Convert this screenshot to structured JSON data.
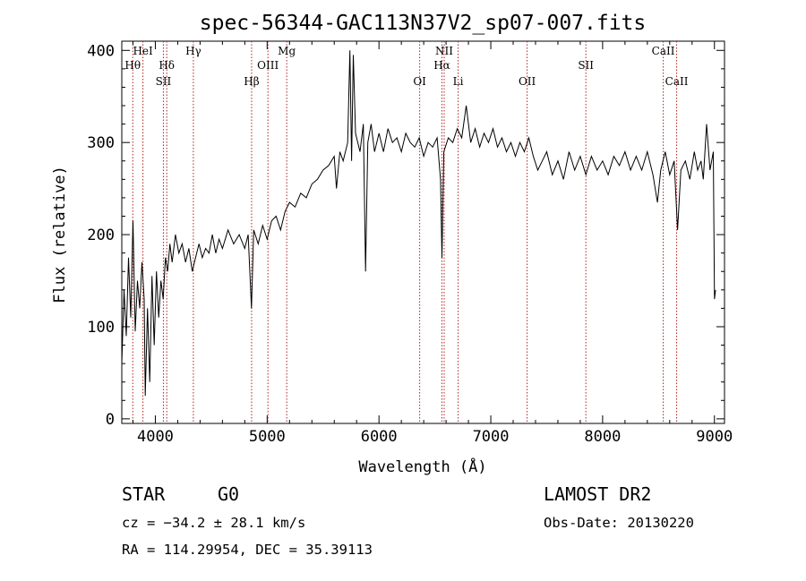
{
  "chart_data": {
    "type": "line",
    "title": "spec-56344-GAC113N37V2_sp07-007.fits",
    "xlabel": "Wavelength (Å)",
    "ylabel": "Flux (relative)",
    "xlim": [
      3700,
      9090
    ],
    "ylim": [
      -5,
      410
    ],
    "x_ticks": [
      4000,
      5000,
      6000,
      7000,
      8000,
      9000
    ],
    "y_ticks": [
      0,
      100,
      200,
      300,
      400
    ],
    "grid": false,
    "series": [
      {
        "color": "#000000",
        "points": [
          [
            3700,
            60
          ],
          [
            3720,
            140
          ],
          [
            3740,
            90
          ],
          [
            3760,
            175
          ],
          [
            3780,
            110
          ],
          [
            3800,
            215
          ],
          [
            3820,
            95
          ],
          [
            3840,
            150
          ],
          [
            3860,
            120
          ],
          [
            3880,
            170
          ],
          [
            3900,
            130
          ],
          [
            3910,
            25
          ],
          [
            3930,
            120
          ],
          [
            3950,
            40
          ],
          [
            3970,
            155
          ],
          [
            3990,
            80
          ],
          [
            4010,
            160
          ],
          [
            4030,
            110
          ],
          [
            4050,
            150
          ],
          [
            4070,
            130
          ],
          [
            4090,
            175
          ],
          [
            4110,
            160
          ],
          [
            4130,
            190
          ],
          [
            4150,
            170
          ],
          [
            4180,
            200
          ],
          [
            4210,
            180
          ],
          [
            4240,
            190
          ],
          [
            4270,
            170
          ],
          [
            4300,
            185
          ],
          [
            4330,
            160
          ],
          [
            4360,
            175
          ],
          [
            4390,
            190
          ],
          [
            4420,
            175
          ],
          [
            4450,
            185
          ],
          [
            4480,
            180
          ],
          [
            4510,
            200
          ],
          [
            4540,
            180
          ],
          [
            4570,
            195
          ],
          [
            4600,
            185
          ],
          [
            4650,
            205
          ],
          [
            4700,
            190
          ],
          [
            4750,
            200
          ],
          [
            4800,
            185
          ],
          [
            4830,
            200
          ],
          [
            4860,
            120
          ],
          [
            4880,
            205
          ],
          [
            4920,
            190
          ],
          [
            4960,
            210
          ],
          [
            5000,
            195
          ],
          [
            5040,
            215
          ],
          [
            5080,
            220
          ],
          [
            5120,
            205
          ],
          [
            5160,
            225
          ],
          [
            5200,
            235
          ],
          [
            5250,
            230
          ],
          [
            5300,
            245
          ],
          [
            5350,
            240
          ],
          [
            5400,
            255
          ],
          [
            5450,
            260
          ],
          [
            5500,
            270
          ],
          [
            5550,
            275
          ],
          [
            5600,
            285
          ],
          [
            5620,
            250
          ],
          [
            5650,
            290
          ],
          [
            5680,
            280
          ],
          [
            5720,
            300
          ],
          [
            5740,
            400
          ],
          [
            5755,
            280
          ],
          [
            5770,
            395
          ],
          [
            5790,
            310
          ],
          [
            5830,
            290
          ],
          [
            5860,
            320
          ],
          [
            5880,
            160
          ],
          [
            5900,
            300
          ],
          [
            5930,
            320
          ],
          [
            5960,
            290
          ],
          [
            6000,
            310
          ],
          [
            6040,
            290
          ],
          [
            6080,
            315
          ],
          [
            6120,
            300
          ],
          [
            6160,
            305
          ],
          [
            6200,
            290
          ],
          [
            6240,
            310
          ],
          [
            6280,
            300
          ],
          [
            6320,
            295
          ],
          [
            6360,
            305
          ],
          [
            6400,
            285
          ],
          [
            6440,
            300
          ],
          [
            6480,
            295
          ],
          [
            6520,
            305
          ],
          [
            6550,
            260
          ],
          [
            6563,
            175
          ],
          [
            6580,
            290
          ],
          [
            6620,
            305
          ],
          [
            6660,
            300
          ],
          [
            6700,
            315
          ],
          [
            6740,
            305
          ],
          [
            6780,
            340
          ],
          [
            6820,
            300
          ],
          [
            6860,
            315
          ],
          [
            6900,
            295
          ],
          [
            6940,
            310
          ],
          [
            6980,
            300
          ],
          [
            7020,
            315
          ],
          [
            7060,
            295
          ],
          [
            7100,
            305
          ],
          [
            7140,
            290
          ],
          [
            7180,
            300
          ],
          [
            7220,
            285
          ],
          [
            7260,
            300
          ],
          [
            7300,
            290
          ],
          [
            7340,
            305
          ],
          [
            7380,
            285
          ],
          [
            7420,
            270
          ],
          [
            7460,
            280
          ],
          [
            7500,
            290
          ],
          [
            7550,
            265
          ],
          [
            7600,
            280
          ],
          [
            7650,
            260
          ],
          [
            7700,
            290
          ],
          [
            7750,
            270
          ],
          [
            7800,
            285
          ],
          [
            7850,
            265
          ],
          [
            7900,
            285
          ],
          [
            7950,
            270
          ],
          [
            8000,
            280
          ],
          [
            8050,
            265
          ],
          [
            8100,
            285
          ],
          [
            8150,
            275
          ],
          [
            8200,
            290
          ],
          [
            8250,
            270
          ],
          [
            8300,
            285
          ],
          [
            8350,
            270
          ],
          [
            8400,
            290
          ],
          [
            8450,
            265
          ],
          [
            8490,
            235
          ],
          [
            8520,
            270
          ],
          [
            8560,
            290
          ],
          [
            8600,
            265
          ],
          [
            8640,
            280
          ],
          [
            8670,
            205
          ],
          [
            8700,
            270
          ],
          [
            8740,
            280
          ],
          [
            8780,
            260
          ],
          [
            8820,
            290
          ],
          [
            8850,
            270
          ],
          [
            8880,
            280
          ],
          [
            8900,
            260
          ],
          [
            8930,
            320
          ],
          [
            8960,
            270
          ],
          [
            8990,
            290
          ],
          [
            9000,
            130
          ],
          [
            9010,
            140
          ]
        ]
      }
    ],
    "lines": [
      {
        "label": "HeI",
        "x": 3889,
        "row": 0
      },
      {
        "label": "Hθ",
        "x": 3798,
        "row": 1
      },
      {
        "label": "Hδ",
        "x": 4102,
        "row": 1
      },
      {
        "label": "SII",
        "x": 4072,
        "row": 2
      },
      {
        "label": "Hγ",
        "x": 4340,
        "row": 0
      },
      {
        "label": "Mg",
        "x": 5175,
        "row": 0
      },
      {
        "label": "OIII",
        "x": 5007,
        "row": 1
      },
      {
        "label": "Hβ",
        "x": 4861,
        "row": 2
      },
      {
        "label": "NII",
        "x": 6583,
        "row": 0
      },
      {
        "label": "Hα",
        "x": 6563,
        "row": 1
      },
      {
        "label": "OI",
        "x": 6364,
        "row": 2
      },
      {
        "label": "Li",
        "x": 6708,
        "row": 2
      },
      {
        "label": "OII",
        "x": 7325,
        "row": 2
      },
      {
        "label": "SII",
        "x": 7850,
        "row": 1
      },
      {
        "label": "CaII",
        "x": 8542,
        "row": 0
      },
      {
        "label": "CaII",
        "x": 8662,
        "row": 2
      }
    ],
    "line_color": "#b02020"
  },
  "info": {
    "object": "STAR",
    "subclass": "G0",
    "survey": "LAMOST DR2",
    "cz": "cz = −34.2 ± 28.1 km/s",
    "obs_date": "Obs-Date: 20130220",
    "coords": "RA = 114.29954, DEC =  35.39113"
  }
}
